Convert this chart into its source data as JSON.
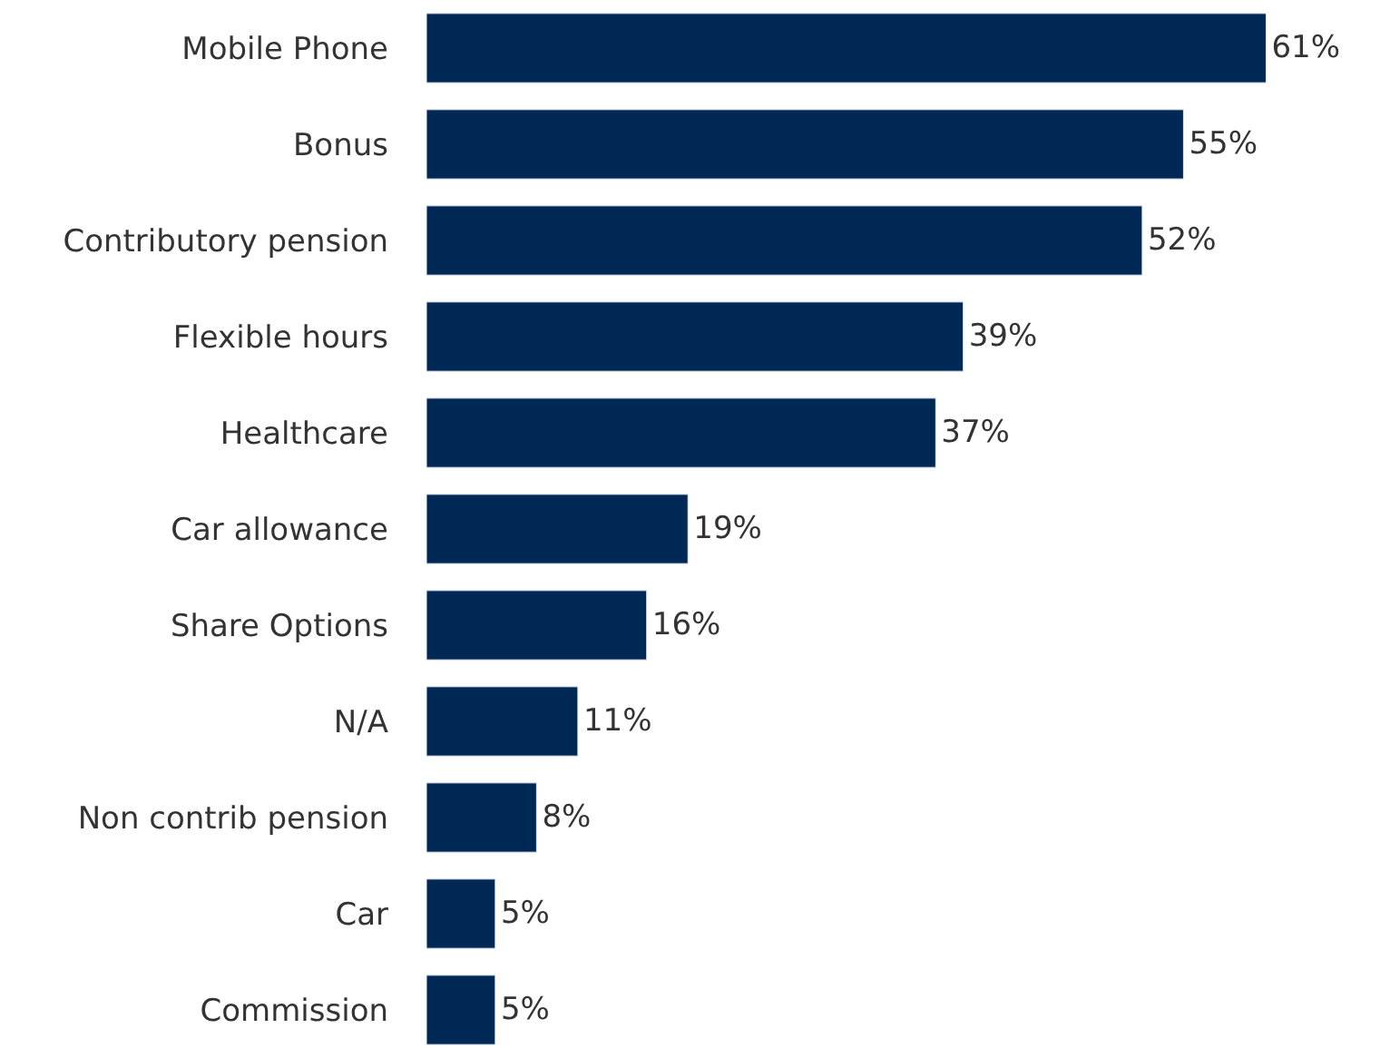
{
  "chart_data": {
    "type": "bar",
    "orientation": "horizontal",
    "categories": [
      "Mobile Phone",
      "Bonus",
      "Contributory pension",
      "Flexible hours",
      "Healthcare",
      "Car allowance",
      "Share Options",
      "N/A",
      "Non contrib pension",
      "Car",
      "Commission"
    ],
    "values": [
      61,
      55,
      52,
      39,
      37,
      19,
      16,
      11,
      8,
      5,
      5
    ],
    "value_labels": [
      "61%",
      "55%",
      "52%",
      "39%",
      "37%",
      "19%",
      "16%",
      "11%",
      "8%",
      "5%",
      "5%"
    ],
    "color": "#002855",
    "xlim": [
      0,
      70
    ],
    "legend": false,
    "tick_labels": "y"
  }
}
